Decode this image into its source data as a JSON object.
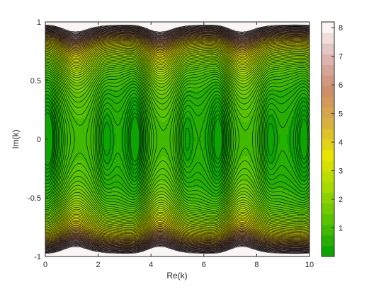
{
  "chart_data": {
    "type": "heatmap",
    "subtype": "filled-contour",
    "title": "",
    "xlabel": "Re(k)",
    "ylabel": "Im(k)",
    "xlim": [
      0,
      10
    ],
    "ylim": [
      -1,
      1
    ],
    "x_ticks": [
      0,
      2,
      4,
      6,
      8,
      10
    ],
    "y_ticks": [
      -1,
      -0.5,
      0,
      0.5,
      1
    ],
    "x_tick_labels": [
      "0",
      "2",
      "4",
      "6",
      "8",
      "10"
    ],
    "y_tick_labels": [
      "-1",
      "-0.5",
      "0",
      "0.5",
      "1"
    ],
    "colorbar": {
      "placement": "right",
      "range": [
        0,
        8.2
      ],
      "ticks": [
        1,
        2,
        3,
        4,
        5,
        6,
        7,
        8
      ],
      "tick_labels": [
        "1",
        "2",
        "3",
        "4",
        "5",
        "6",
        "7",
        "8"
      ],
      "colormap": [
        "#00a000",
        "#50c000",
        "#a0d800",
        "#e8e400",
        "#d8b040",
        "#cc8c6c",
        "#e0b8b8",
        "#ffffff"
      ]
    },
    "contour_line_color": "#000000",
    "field": {
      "description_of_pattern": "periodic valleys along Re(k) with minima near Im(k)=0",
      "valley_centers_re": [
        0.1,
        2.25,
        3.45,
        5.3,
        6.6,
        8.45,
        9.85
      ],
      "ridge_centers_re": [
        1.1,
        4.3,
        7.4
      ],
      "max_value": 8.2,
      "min_value": 0.05
    },
    "grid": false,
    "legend": "none"
  }
}
